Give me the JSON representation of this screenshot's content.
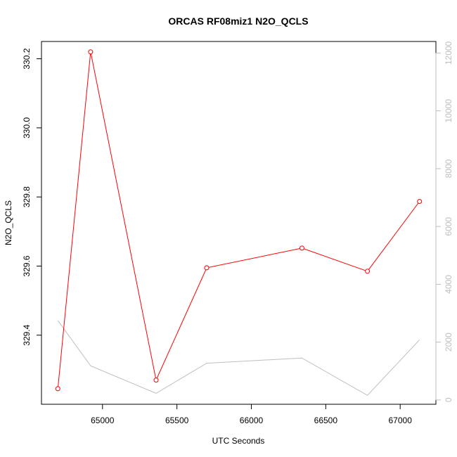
{
  "chart_data": {
    "type": "line",
    "title": "ORCAS RF08miz1 N2O_QCLS",
    "xlabel": "UTC Seconds",
    "ylabel": "N2O_QCLS",
    "x": [
      64700,
      64920,
      65360,
      65700,
      66340,
      66780,
      67130
    ],
    "x_ticks": [
      65000,
      65500,
      66000,
      66500,
      67000
    ],
    "xlim": [
      64590,
      67240
    ],
    "ylim": [
      329.2,
      330.25
    ],
    "y_ticks": [
      329.4,
      329.6,
      329.8,
      330.0,
      330.2
    ],
    "y2lim": [
      -150,
      12400
    ],
    "y2_ticks": [
      0,
      2000,
      4000,
      6000,
      8000,
      10000,
      12000
    ],
    "series": [
      {
        "axis": "left",
        "color": "#ff0000",
        "marker": "open-circle",
        "values": [
          329.245,
          330.22,
          329.27,
          329.595,
          329.652,
          329.585,
          329.787
        ]
      },
      {
        "axis": "right",
        "color": "#bebebe",
        "marker": "none",
        "values": [
          2750,
          1180,
          230,
          1270,
          1450,
          160,
          2080
        ]
      }
    ],
    "grid": false,
    "legend": "none"
  }
}
